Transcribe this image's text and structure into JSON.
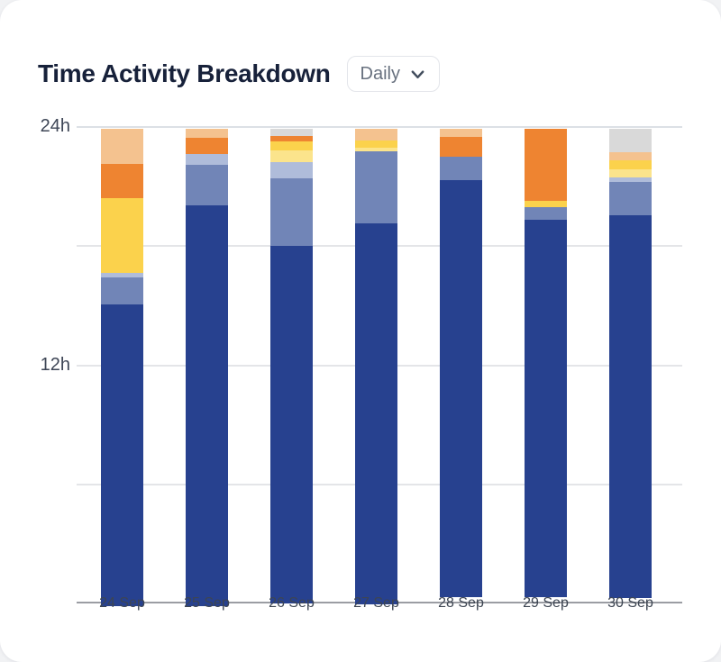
{
  "page": {
    "background": "#f1f2f4",
    "card_background": "#ffffff"
  },
  "header": {
    "title": "Time Activity Breakdown",
    "period_selector": {
      "value": "Daily",
      "icon": "chevron-down-icon"
    }
  },
  "chart_data": {
    "type": "bar",
    "stacked": true,
    "title": "Time Activity Breakdown",
    "unit": "hours",
    "categories": [
      "24 Sep",
      "25 Sep",
      "26 Sep",
      "27 Sep",
      "28 Sep",
      "29 Sep",
      "30 Sep"
    ],
    "ylim": [
      0,
      24
    ],
    "y_ticks": [
      {
        "value": 24,
        "label": "24h"
      },
      {
        "value": 12,
        "label": "12h"
      }
    ],
    "gridlines_at_hours": [
      24,
      18,
      12,
      6
    ],
    "grid": true,
    "legend_position": "none",
    "series": [
      {
        "name": "deep-blue",
        "color": "#27418f",
        "values": [
          15.2,
          20.2,
          18.0,
          19.2,
          21.0,
          19.0,
          19.3
        ]
      },
      {
        "name": "medium-blue",
        "color": "#7185b7",
        "values": [
          1.35,
          2.05,
          3.4,
          3.6,
          1.2,
          0.65,
          1.65
        ]
      },
      {
        "name": "lavender",
        "color": "#afbcda",
        "values": [
          0.25,
          0.55,
          0.8,
          0.0,
          0.0,
          0.0,
          0.25
        ]
      },
      {
        "name": "pale-yellow",
        "color": "#fbe48c",
        "values": [
          0.0,
          0.0,
          0.6,
          0.2,
          0.0,
          0.0,
          0.4
        ]
      },
      {
        "name": "yellow",
        "color": "#fbd24c",
        "values": [
          3.75,
          0.0,
          0.45,
          0.35,
          0.0,
          0.3,
          0.45
        ]
      },
      {
        "name": "orange",
        "color": "#ee8431",
        "values": [
          1.75,
          0.8,
          0.3,
          0.0,
          1.0,
          3.65,
          0.0
        ]
      },
      {
        "name": "peach",
        "color": "#f4c28f",
        "values": [
          1.75,
          0.45,
          0.0,
          0.6,
          0.4,
          0.0,
          0.4
        ]
      },
      {
        "name": "gray",
        "color": "#d9d9d9",
        "values": [
          0.0,
          0.0,
          0.35,
          0.0,
          0.0,
          0.0,
          1.2
        ]
      }
    ]
  },
  "axis_colors": {
    "gridline": "#e4e5e8",
    "top_gridline": "#dce0e6",
    "axis_line": "#9b9da3",
    "y_tick_text": "#3e4656",
    "x_tick_text": "#3d4552"
  }
}
